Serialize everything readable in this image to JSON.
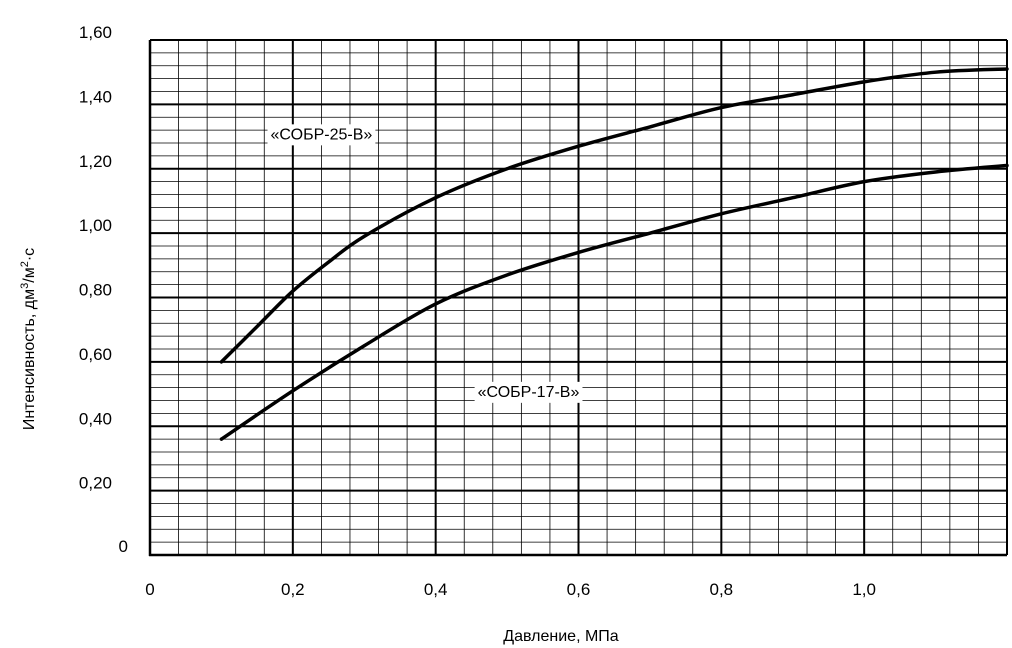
{
  "chart_data": {
    "type": "line",
    "title": "",
    "xlabel": "Давление, МПа",
    "ylabel_parts": {
      "base": "Интенсивность, дм",
      "sup1": "3",
      "mid": "/м",
      "sup2": "2",
      "tail": "·с"
    },
    "xlim": [
      0,
      1.2
    ],
    "ylim": [
      0,
      1.6
    ],
    "x_ticks": [
      0,
      0.2,
      0.4,
      0.6,
      0.8,
      1.0
    ],
    "x_tick_labels": [
      "0",
      "0,2",
      "0,4",
      "0,6",
      "0,8",
      "1,0"
    ],
    "y_ticks": [
      0,
      0.2,
      0.4,
      0.6,
      0.8,
      1.0,
      1.2,
      1.4,
      1.6
    ],
    "y_tick_labels": [
      "0",
      "0,20",
      "0,40",
      "0,60",
      "0,80",
      "1,00",
      "1,20",
      "1,40",
      "1,60"
    ],
    "grid": true,
    "major_grid_step_x": 0.2,
    "major_grid_step_y": 0.2,
    "minor_grid_step_x": 0.04,
    "minor_grid_step_y": 0.04,
    "line_color": "#000000",
    "series": [
      {
        "name": "«СОБР-25-В»",
        "x": [
          0.1,
          0.15,
          0.2,
          0.25,
          0.3,
          0.4,
          0.5,
          0.6,
          0.7,
          0.8,
          0.9,
          1.0,
          1.1,
          1.2
        ],
        "y": [
          0.6,
          0.71,
          0.82,
          0.91,
          0.99,
          1.11,
          1.2,
          1.27,
          1.33,
          1.39,
          1.43,
          1.47,
          1.5,
          1.51
        ]
      },
      {
        "name": "«СОБР-17-В»",
        "x": [
          0.1,
          0.2,
          0.3,
          0.4,
          0.5,
          0.6,
          0.7,
          0.8,
          0.9,
          1.0,
          1.1,
          1.2
        ],
        "y": [
          0.36,
          0.51,
          0.65,
          0.78,
          0.87,
          0.94,
          1.0,
          1.06,
          1.11,
          1.16,
          1.19,
          1.21
        ]
      }
    ],
    "series_labels": [
      {
        "text": "«СОБР-25-В»",
        "x": 0.24,
        "y": 1.31
      },
      {
        "text": "«СОБР-17-В»",
        "x": 0.53,
        "y": 0.51
      }
    ]
  }
}
